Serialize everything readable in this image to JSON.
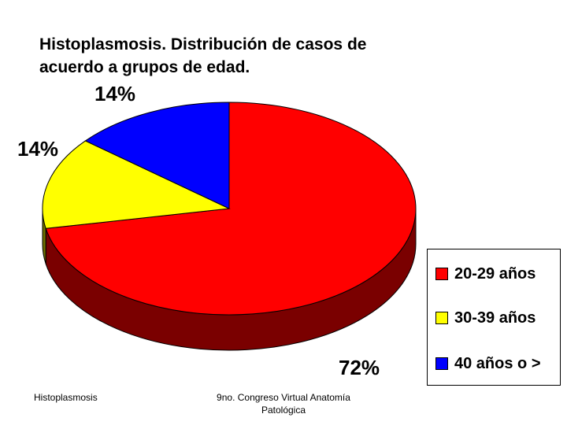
{
  "chart_data": {
    "type": "pie",
    "title_lines": [
      "Histoplasmosis. Distribución de casos de",
      "acuerdo a grupos de edad."
    ],
    "slices": [
      {
        "label": "20-29 años",
        "value": 72,
        "value_label": "72%",
        "color": "#FF0000",
        "side_color": "#7A0000"
      },
      {
        "label": "30-39 años",
        "value": 14,
        "value_label": "14%",
        "color": "#FFFF00",
        "side_color": "#6E6E00"
      },
      {
        "label": "40 años o >",
        "value": 14,
        "value_label": "14%",
        "color": "#0000FF",
        "side_color": "#00007A"
      }
    ],
    "legend_position": "right",
    "three_d": true
  },
  "footer": {
    "left": "Histoplasmosis",
    "center_line_1": "9no. Congreso Virtual Anatomía",
    "center_line_2": "Patológica"
  }
}
